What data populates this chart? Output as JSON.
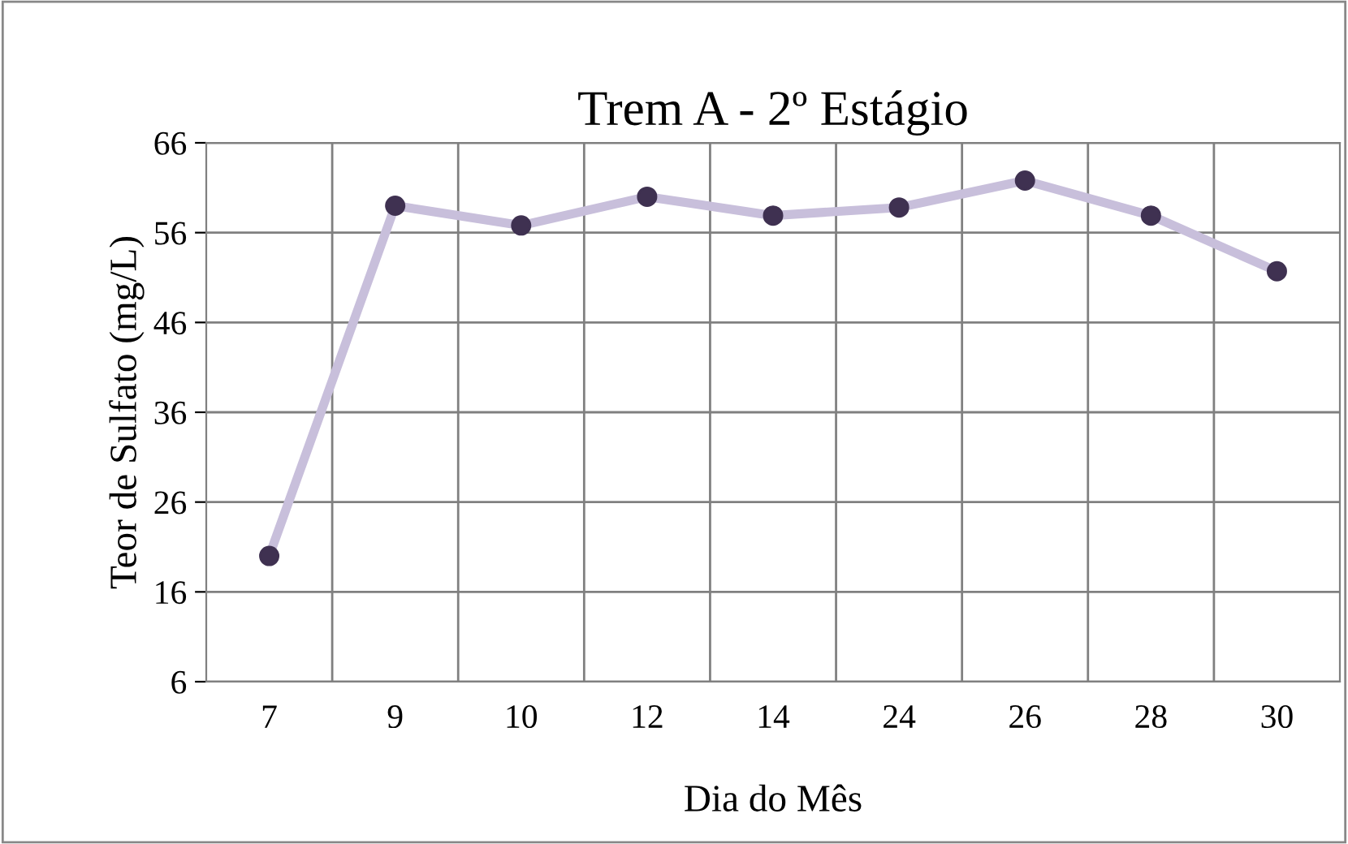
{
  "chart_data": {
    "type": "line",
    "title": "Trem A - 2º Estágio",
    "xlabel": "Dia do Mês",
    "ylabel": "Teor de Sulfato (mg/L)",
    "categories": [
      "7",
      "9",
      "10",
      "12",
      "14",
      "24",
      "26",
      "28",
      "30"
    ],
    "series": [
      {
        "color": "#c8bfdb",
        "colors": [
          "#3f3151",
          "#3f3151",
          "#3f3151",
          "#3f3151",
          "#3f3151",
          "#3f3151",
          "#3f3151",
          "#3f3151",
          "#3f3151"
        ],
        "values": [
          20,
          59,
          56.8,
          60,
          57.9,
          58.8,
          61.8,
          57.9,
          51.7
        ]
      }
    ],
    "ylim": [
      6,
      66
    ],
    "yticks": [
      6,
      16,
      26,
      36,
      46,
      56,
      66
    ],
    "grid": true,
    "marker": "circle",
    "line_style": "solid",
    "legend": false
  }
}
